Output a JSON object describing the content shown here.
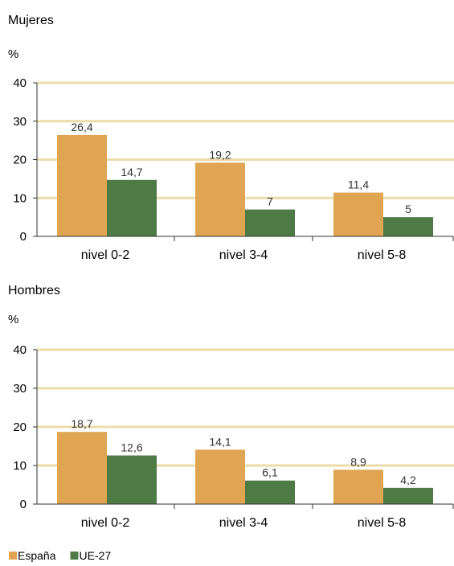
{
  "colors": {
    "grid": "#ecdcaa",
    "axis": "#333333"
  },
  "chart_data": [
    {
      "type": "bar",
      "title": "Mujeres",
      "ylabel": "%",
      "ylim": [
        0,
        40
      ],
      "yticks": [
        "0",
        "10",
        "20",
        "30",
        "40"
      ],
      "categories": [
        "nivel 0-2",
        "nivel 3-4",
        "nivel 5-8"
      ],
      "series": [
        {
          "name": "España",
          "color": "#e0a552",
          "values": [
            26.4,
            19.2,
            11.4
          ],
          "labels": [
            "26,4",
            "19,2",
            "11,4"
          ]
        },
        {
          "name": "UE-27",
          "color": "#4e7a45",
          "values": [
            14.7,
            7,
            5
          ],
          "labels": [
            "14,7",
            "7",
            "5"
          ]
        }
      ]
    },
    {
      "type": "bar",
      "title": "Hombres",
      "ylabel": "%",
      "ylim": [
        0,
        40
      ],
      "yticks": [
        "0",
        "10",
        "20",
        "30",
        "40"
      ],
      "categories": [
        "nivel 0-2",
        "nivel 3-4",
        "nivel 5-8"
      ],
      "series": [
        {
          "name": "España",
          "color": "#e0a552",
          "values": [
            18.7,
            14.1,
            8.9
          ],
          "labels": [
            "18,7",
            "14,1",
            "8,9"
          ]
        },
        {
          "name": "UE-27",
          "color": "#4e7a45",
          "values": [
            12.6,
            6.1,
            4.2
          ],
          "labels": [
            "12,6",
            "6,1",
            "4,2"
          ]
        }
      ]
    }
  ],
  "legend": [
    {
      "label": "España",
      "color": "#e0a552"
    },
    {
      "label": "UE-27",
      "color": "#4e7a45"
    }
  ]
}
